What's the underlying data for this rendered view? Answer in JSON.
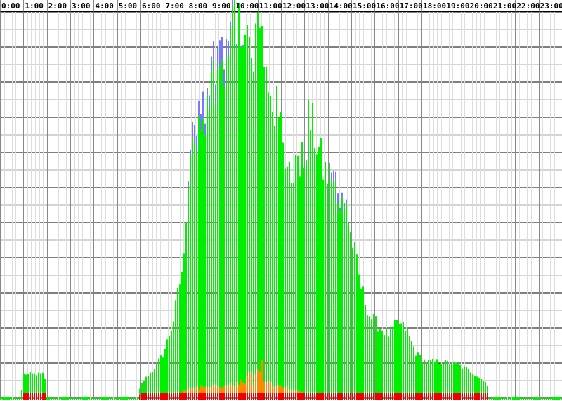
{
  "chart_data": {
    "type": "bar",
    "title": "",
    "xlabel": "",
    "ylabel": "",
    "x_tick_labels": [
      "0:00",
      "1:00",
      "2:00",
      "3:00",
      "4:00",
      "5:00",
      "6:00",
      "7:00",
      "8:00",
      "9:00",
      "10:00",
      "11:00",
      "12:00",
      "13:00",
      "14:00",
      "15:00",
      "16:00",
      "17:00",
      "18:00",
      "19:00",
      "20:00",
      "21:00",
      "22:00",
      "23:00"
    ],
    "x_range_hours": [
      0,
      24
    ],
    "ylim": [
      0,
      100
    ],
    "grid": true,
    "legend": "none",
    "stacked": true,
    "series": [
      {
        "key": "green",
        "color": "#00ee00",
        "profile": [
          [
            0,
            0.6
          ],
          [
            0.9,
            0.6
          ],
          [
            1.0,
            4.8
          ],
          [
            1.9,
            4.8
          ],
          [
            2.0,
            0.6
          ],
          [
            5.9,
            0.6
          ],
          [
            6.1,
            2.8
          ],
          [
            6.5,
            5.5
          ],
          [
            7.0,
            10.0
          ],
          [
            7.4,
            18.0
          ],
          [
            7.8,
            32.0
          ],
          [
            8.1,
            56.0
          ],
          [
            8.5,
            68.0
          ],
          [
            8.8,
            72.0
          ],
          [
            9.1,
            78.0
          ],
          [
            9.4,
            83.0
          ],
          [
            9.7,
            87.0
          ],
          [
            10.0,
            97.0
          ],
          [
            10.2,
            93.0
          ],
          [
            10.5,
            86.0
          ],
          [
            10.8,
            84.0
          ],
          [
            11.0,
            90.0
          ],
          [
            11.3,
            80.0
          ],
          [
            11.7,
            74.0
          ],
          [
            12.0,
            67.0
          ],
          [
            12.3,
            58.0
          ],
          [
            12.7,
            58.0
          ],
          [
            13.0,
            60.0
          ],
          [
            13.2,
            71.0
          ],
          [
            13.5,
            66.0
          ],
          [
            13.8,
            58.0
          ],
          [
            14.1,
            55.0
          ],
          [
            14.5,
            52.0
          ],
          [
            14.8,
            48.0
          ],
          [
            15.1,
            38.0
          ],
          [
            15.4,
            28.0
          ],
          [
            15.8,
            20.0
          ],
          [
            16.2,
            17.0
          ],
          [
            16.6,
            15.0
          ],
          [
            17.0,
            18.0
          ],
          [
            17.4,
            16.0
          ],
          [
            17.8,
            10.0
          ],
          [
            18.2,
            8.0
          ],
          [
            18.8,
            8.0
          ],
          [
            19.4,
            7.5
          ],
          [
            20.0,
            6.0
          ],
          [
            20.8,
            2.5
          ],
          [
            20.9,
            0.6
          ],
          [
            24.0,
            0.6
          ]
        ]
      },
      {
        "key": "blue",
        "color": "#7777ff",
        "profile": [
          [
            8.0,
            0
          ],
          [
            8.2,
            3.0
          ],
          [
            8.6,
            5.0
          ],
          [
            9.0,
            4.0
          ],
          [
            9.3,
            5.0
          ],
          [
            9.6,
            4.0
          ],
          [
            10.0,
            1.0
          ],
          [
            10.4,
            0
          ],
          [
            14.0,
            0
          ],
          [
            14.3,
            3.0
          ],
          [
            14.7,
            1.0
          ],
          [
            15.0,
            0
          ]
        ]
      },
      {
        "key": "orange",
        "color": "#ff8800",
        "profile": [
          [
            7.8,
            0
          ],
          [
            8.0,
            1.0
          ],
          [
            9.0,
            2.0
          ],
          [
            10.0,
            1.5
          ],
          [
            10.8,
            4.0
          ],
          [
            11.2,
            6.0
          ],
          [
            11.6,
            2.0
          ],
          [
            12.4,
            1.0
          ],
          [
            13.0,
            0
          ]
        ]
      },
      {
        "key": "red",
        "color": "#ee0000",
        "profile": [
          [
            0.0,
            0
          ],
          [
            0.95,
            0
          ],
          [
            1.0,
            1.8
          ],
          [
            1.95,
            1.8
          ],
          [
            2.0,
            0
          ],
          [
            5.95,
            0
          ],
          [
            6.0,
            1.8
          ],
          [
            20.85,
            1.8
          ],
          [
            20.9,
            0
          ],
          [
            24.0,
            0
          ]
        ]
      }
    ]
  }
}
